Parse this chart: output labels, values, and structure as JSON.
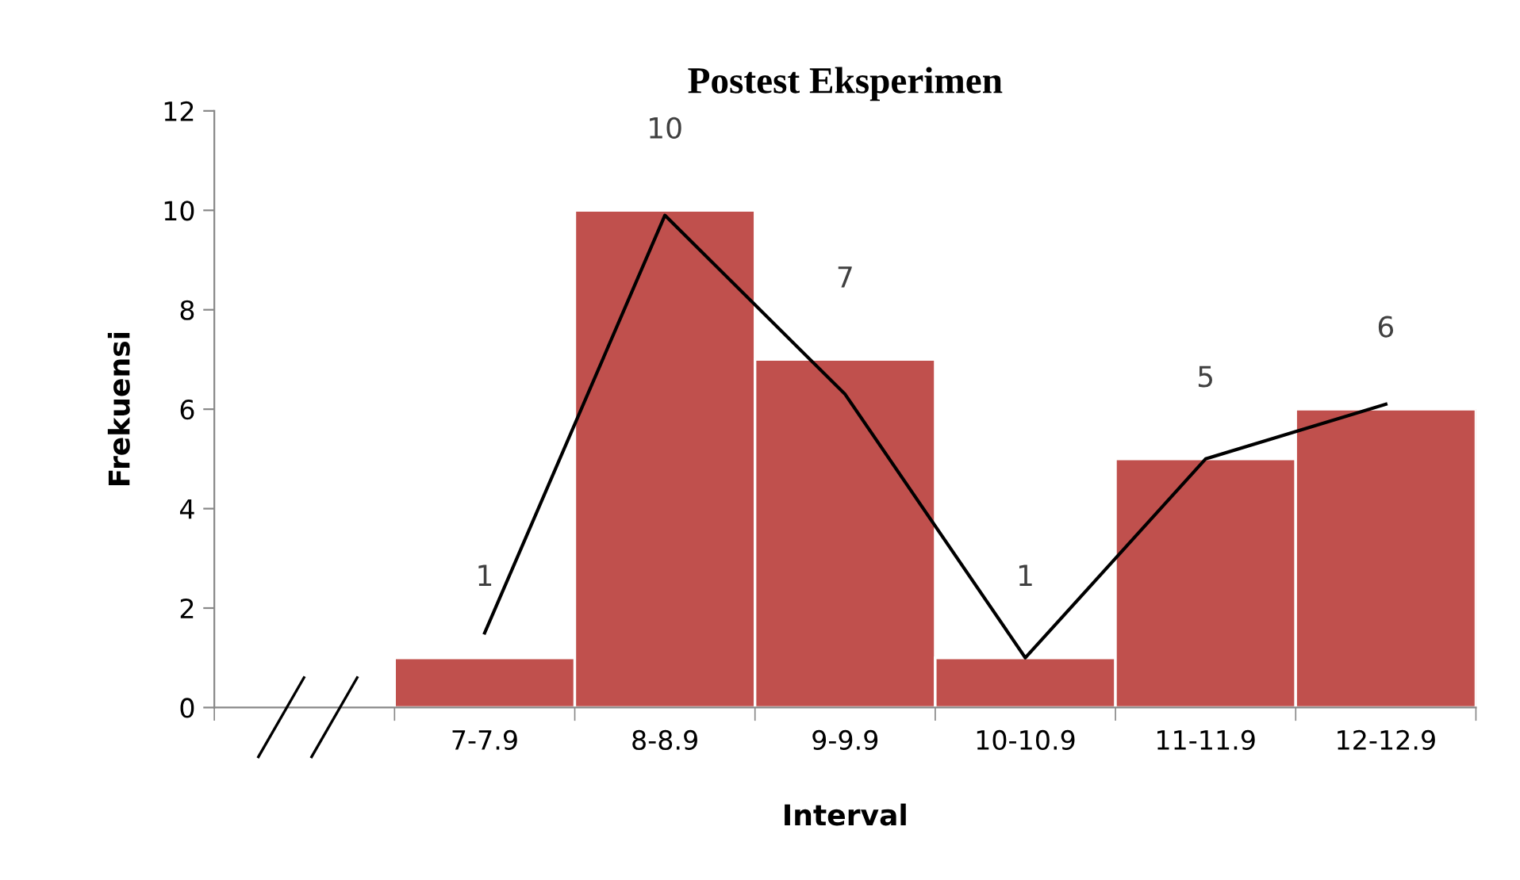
{
  "chart_data": {
    "type": "bar",
    "title": "Postest Eksperimen",
    "xlabel": "Interval",
    "ylabel": "Frekuensi",
    "categories": [
      null,
      "7-7.9",
      "8-8.9",
      "9-9.9",
      "10-10.9",
      "11-11.9",
      "12-12.9"
    ],
    "series": [
      {
        "color": "#c0504d",
        "values": [
          null,
          1,
          10,
          7,
          1,
          5,
          6
        ],
        "data_labels": true
      },
      {
        "type": "line",
        "color": "#000000",
        "values": [
          null,
          1.5,
          9.9,
          6.3,
          1.0,
          5.0,
          6.1
        ]
      }
    ],
    "ylim": [
      0,
      12
    ],
    "yticks": [
      0,
      2,
      4,
      6,
      8,
      10,
      12
    ],
    "grid": false,
    "legend": false
  }
}
